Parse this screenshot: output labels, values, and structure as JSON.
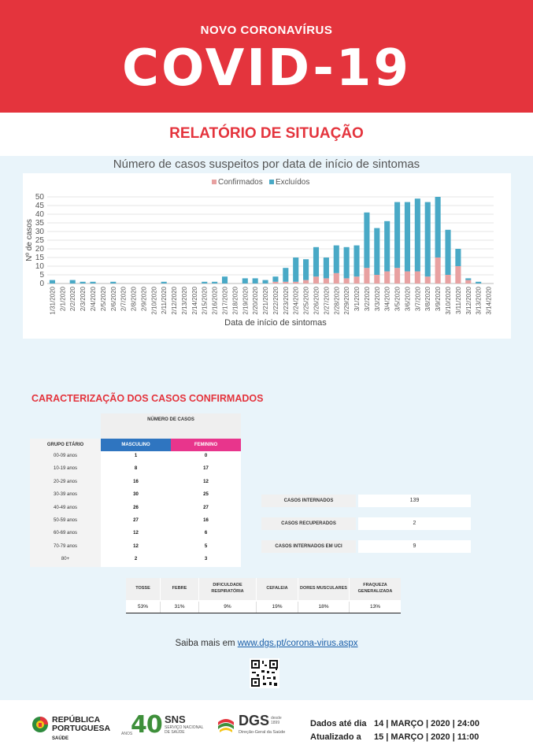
{
  "banner": {
    "subtitle": "NOVO CORONAVÍRUS",
    "title": "COVID-19"
  },
  "report_title": "RELATÓRIO DE SITUAÇÃO",
  "chart_data": {
    "type": "bar",
    "stacked": true,
    "title": "Número de casos suspeitos por data de início de sintomas",
    "xlabel": "Data de início de sintomas",
    "ylabel": "Nº de casos",
    "ylim": [
      0,
      50
    ],
    "yticks": [
      0,
      5,
      10,
      15,
      20,
      25,
      30,
      35,
      40,
      45,
      50
    ],
    "legend": [
      "Confirmados",
      "Excluídos"
    ],
    "categories": [
      "1/31/2020",
      "2/1/2020",
      "2/2/2020",
      "2/3/2020",
      "2/4/2020",
      "2/5/2020",
      "2/6/2020",
      "2/7/2020",
      "2/8/2020",
      "2/9/2020",
      "2/10/2020",
      "2/11/2020",
      "2/12/2020",
      "2/13/2020",
      "2/14/2020",
      "2/15/2020",
      "2/16/2020",
      "2/17/2020",
      "2/18/2020",
      "2/19/2020",
      "2/20/2020",
      "2/21/2020",
      "2/22/2020",
      "2/23/2020",
      "2/24/2020",
      "2/25/2020",
      "2/26/2020",
      "2/27/2020",
      "2/28/2020",
      "2/29/2020",
      "3/1/2020",
      "3/2/2020",
      "3/3/2020",
      "3/4/2020",
      "3/5/2020",
      "3/6/2020",
      "3/7/2020",
      "3/8/2020",
      "3/9/2020",
      "3/10/2020",
      "3/11/2020",
      "3/12/2020",
      "3/13/2020",
      "3/14/2020"
    ],
    "series": [
      {
        "name": "Confirmados",
        "color": "#e8a1a1",
        "values": [
          0,
          0,
          0,
          0,
          0,
          0,
          0,
          0,
          0,
          0,
          0,
          0,
          0,
          0,
          0,
          0,
          0,
          0,
          0,
          0,
          0,
          0,
          1,
          1,
          1,
          2,
          4,
          3,
          6,
          3,
          4,
          9,
          5,
          7,
          9,
          7,
          7,
          4,
          15,
          5,
          10,
          2,
          0,
          0
        ]
      },
      {
        "name": "Excluídos",
        "color": "#49a9c6",
        "values": [
          2,
          0,
          2,
          1,
          1,
          0,
          1,
          0,
          0,
          0,
          0,
          1,
          0,
          0,
          0,
          1,
          1,
          4,
          0,
          3,
          3,
          2,
          3,
          8,
          14,
          12,
          17,
          12,
          16,
          18,
          18,
          32,
          27,
          29,
          38,
          40,
          42,
          43,
          35,
          26,
          10,
          1,
          1,
          0
        ]
      }
    ]
  },
  "section_title": "CARACTERIZAÇÃO DOS CASOS CONFIRMADOS",
  "age_table": {
    "group_header": "NÚMERO DE CASOS",
    "age_header": "GRUPO ETÁRIO",
    "male_header": "MASCULINO",
    "female_header": "FEMININO",
    "rows": [
      {
        "age": "00-09 anos",
        "m": "1",
        "f": "0"
      },
      {
        "age": "10-19 anos",
        "m": "8",
        "f": "17"
      },
      {
        "age": "20-29 anos",
        "m": "16",
        "f": "12"
      },
      {
        "age": "30-39 anos",
        "m": "30",
        "f": "25"
      },
      {
        "age": "40-49 anos",
        "m": "26",
        "f": "27"
      },
      {
        "age": "50-59 anos",
        "m": "27",
        "f": "16"
      },
      {
        "age": "60-69 anos",
        "m": "12",
        "f": "6"
      },
      {
        "age": "70-79 anos",
        "m": "12",
        "f": "5"
      },
      {
        "age": "80+",
        "m": "2",
        "f": "3"
      }
    ]
  },
  "stats": [
    {
      "label": "CASOS INTERNADOS",
      "value": "139"
    },
    {
      "label": "CASOS RECUPERADOS",
      "value": "2"
    },
    {
      "label": "CASOS INTERNADOS EM UCI",
      "value": "9"
    }
  ],
  "symptoms": [
    {
      "label": "TOSSE",
      "value": "53%"
    },
    {
      "label": "FEBRE",
      "value": "31%"
    },
    {
      "label": "DIFICULDADE RESPIRATÓRIA",
      "value": "9%"
    },
    {
      "label": "CEFALEIA",
      "value": "19%"
    },
    {
      "label": "DORES MUSCULARES",
      "value": "18%"
    },
    {
      "label": "FRAQUEZA GENERALIZADA",
      "value": "13%"
    }
  ],
  "more_info": {
    "prefix": "Saiba mais em ",
    "link": "www.dgs.pt/corona-virus.aspx"
  },
  "footer": {
    "rep1": "REPÚBLICA",
    "rep2": "PORTUGUESA",
    "rep3": "SAÚDE",
    "anos": "40",
    "anos_sub": "ANOS",
    "sns": "SNS",
    "sns_sub1": "SERVIÇO NACIONAL",
    "sns_sub2": "DE SAÚDE",
    "dgs": "DGS",
    "dgs_since": "desde 1899",
    "dgs_sub": "Direção-Geral da Saúde",
    "data_label": "Dados até dia",
    "data_value": "14 | MARÇO | 2020 | 24:00",
    "upd_label": "Atualizado a",
    "upd_value": "15 | MARÇO | 2020 | 11:00"
  }
}
